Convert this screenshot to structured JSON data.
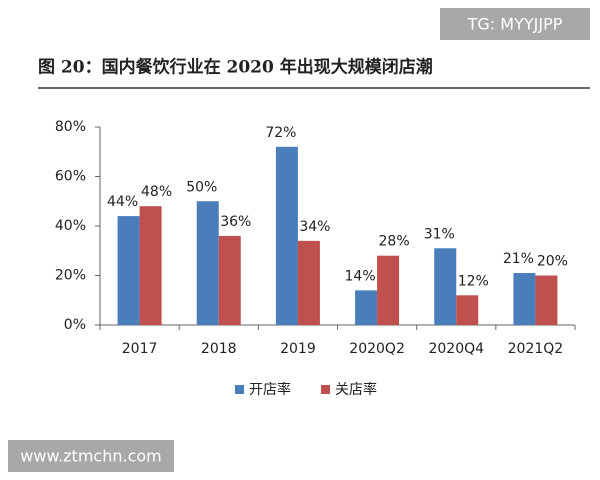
{
  "watermarks": [
    "TG: MYYJJPP",
    "www.ztmchn.com"
  ],
  "chart_data": {
    "type": "bar",
    "title": "图 20：国内餐饮行业在 2020 年出现大规模闭店潮",
    "categories": [
      "2017",
      "2018",
      "2019",
      "2020Q2",
      "2020Q4",
      "2021Q2"
    ],
    "series": [
      {
        "name": "开店率",
        "color": "#4a7ebb",
        "values": [
          44,
          50,
          72,
          14,
          31,
          21
        ],
        "value_labels": [
          "44%",
          "50%",
          "72%",
          "14%",
          "31%",
          "21%"
        ]
      },
      {
        "name": "关店率",
        "color": "#c0504d",
        "values": [
          48,
          36,
          34,
          28,
          12,
          20
        ],
        "value_labels": [
          "48%",
          "36%",
          "34%",
          "28%",
          "12%",
          "20%"
        ]
      }
    ],
    "ylim": [
      0,
      80
    ],
    "yticks": [
      {
        "value": 0,
        "label": "0%"
      },
      {
        "value": 20,
        "label": "20%"
      },
      {
        "value": 40,
        "label": "40%"
      },
      {
        "value": 60,
        "label": "60%"
      },
      {
        "value": 80,
        "label": "80%"
      }
    ],
    "legend": "bottom"
  }
}
